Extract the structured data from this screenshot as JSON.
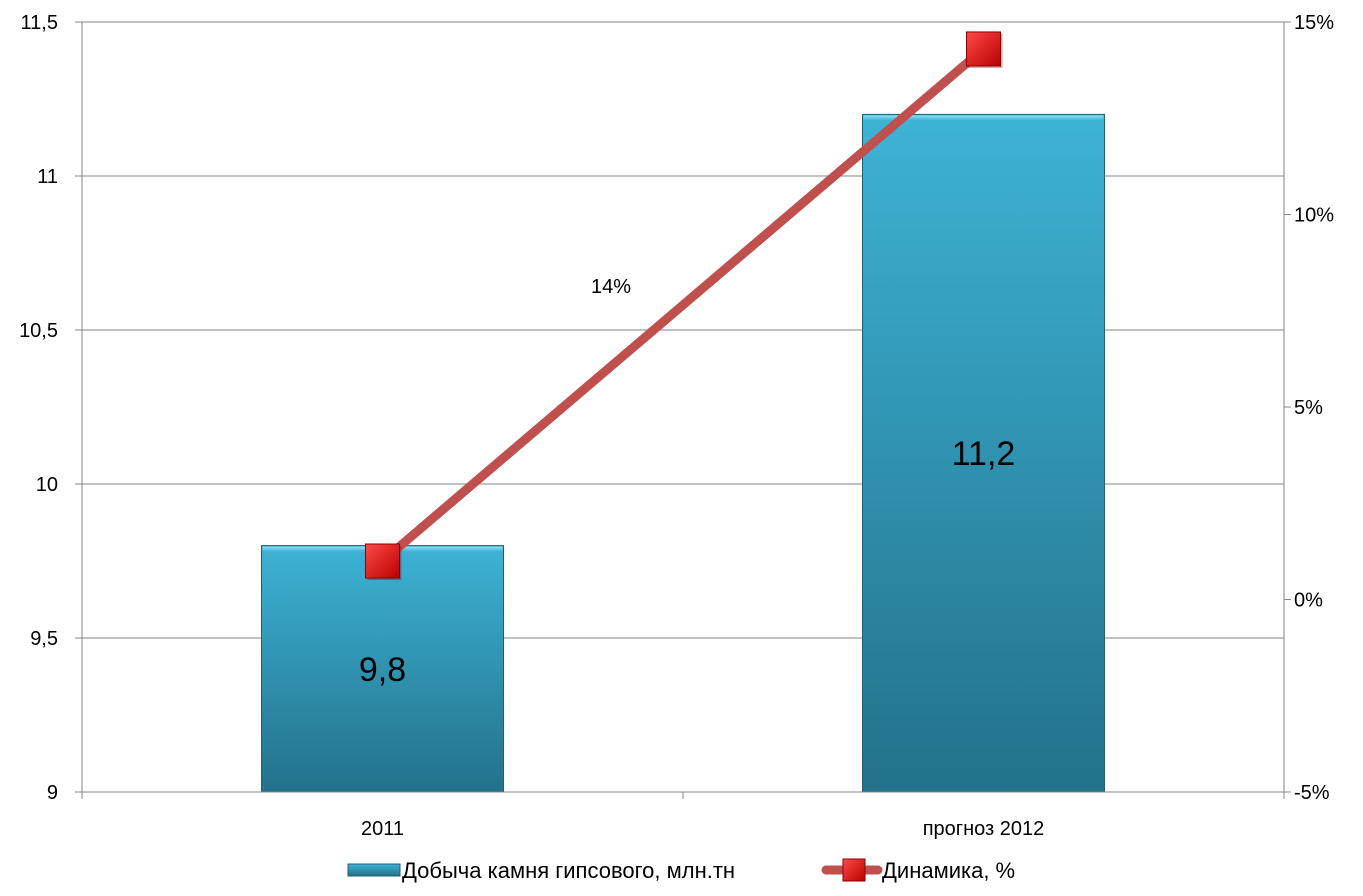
{
  "chart_data": {
    "type": "bar",
    "categories": [
      "2011",
      "прогноз 2012"
    ],
    "series": [
      {
        "name": "Добыча камня гипсового, млн.тн",
        "type": "bar",
        "axis": "left",
        "values": [
          9.8,
          11.2
        ],
        "data_labels": [
          "9,8",
          "11,2"
        ]
      },
      {
        "name": "Динамика, %",
        "type": "line",
        "axis": "right",
        "values": [
          1.0,
          14.3
        ],
        "data_labels": [
          "",
          "14%"
        ]
      }
    ],
    "y_left": {
      "ylim": [
        9,
        11.5
      ],
      "ticks": [
        9,
        9.5,
        10,
        10.5,
        11,
        11.5
      ],
      "tick_labels": [
        "9",
        "9,5",
        "10",
        "10,5",
        "11",
        "11,5"
      ]
    },
    "y_right": {
      "ylim": [
        -5,
        15
      ],
      "ticks": [
        -5,
        0,
        5,
        10,
        15
      ],
      "tick_labels": [
        "-5%",
        "0%",
        "5%",
        "10%",
        "15%"
      ]
    },
    "grid": true,
    "legend_position": "bottom",
    "colors": {
      "bar_top": "#3DB3D6",
      "bar_bottom": "#23718A",
      "line": "#C0504D",
      "marker": "#E8161D",
      "grid": "#868686"
    }
  }
}
